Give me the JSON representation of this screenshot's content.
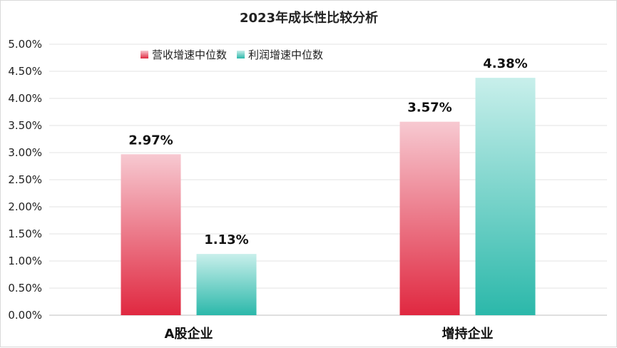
{
  "chart_data": {
    "type": "bar",
    "title": "2023年成长性比较分析",
    "categories": [
      "A股企业",
      "增持企业"
    ],
    "series": [
      {
        "name": "营收增速中位数",
        "values": [
          2.97,
          3.57
        ],
        "labels": [
          "2.97%",
          "3.57%"
        ],
        "color_top": "#f7c9d1",
        "color_bottom": "#e02840"
      },
      {
        "name": "利润增速中位数",
        "values": [
          1.13,
          4.38
        ],
        "labels": [
          "1.13%",
          "4.38%"
        ],
        "color_top": "#c8efeb",
        "color_bottom": "#2bb8aa"
      }
    ],
    "ylim": [
      0,
      5
    ],
    "yticks": [
      "0.00%",
      "0.50%",
      "1.00%",
      "1.50%",
      "2.00%",
      "2.50%",
      "3.00%",
      "3.50%",
      "4.00%",
      "4.50%",
      "5.00%"
    ],
    "xlabel": "",
    "ylabel": "",
    "grid": true,
    "legend": "top-left"
  }
}
